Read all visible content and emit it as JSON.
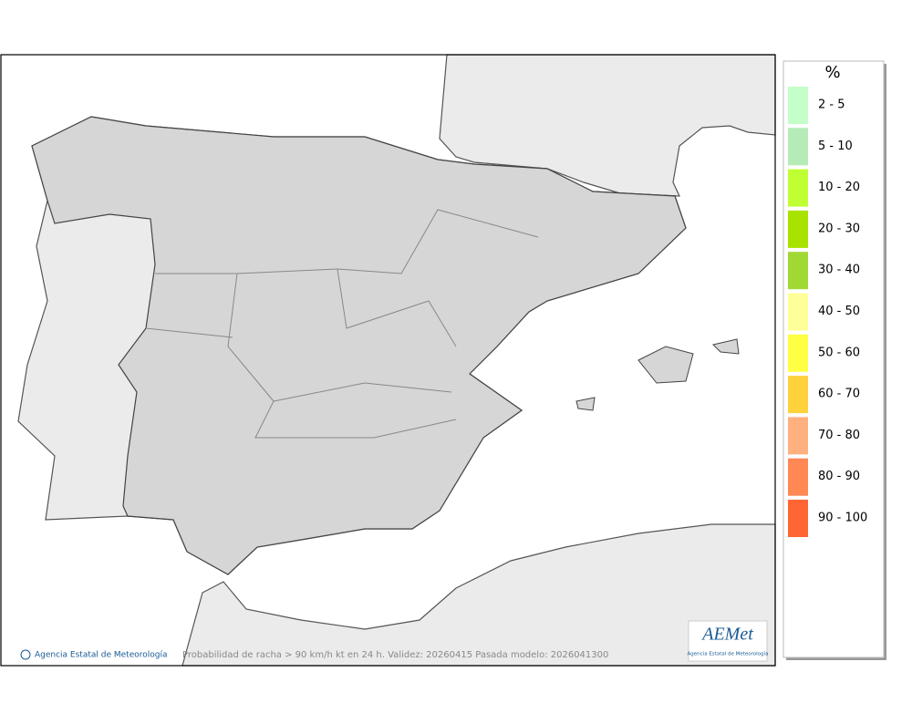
{
  "legend": {
    "title": "%",
    "items": [
      {
        "label": "2 - 5",
        "color": "#c4fec8"
      },
      {
        "label": "5 - 10",
        "color": "#b4ebb7"
      },
      {
        "label": "10 - 20",
        "color": "#bfff33"
      },
      {
        "label": "20 - 30",
        "color": "#a8e300"
      },
      {
        "label": "30 - 40",
        "color": "#a1d934"
      },
      {
        "label": "40 - 50",
        "color": "#ffff99"
      },
      {
        "label": "50 - 60",
        "color": "#ffff44"
      },
      {
        "label": "60 - 70",
        "color": "#ffd23c"
      },
      {
        "label": "70 - 80",
        "color": "#ffb07f"
      },
      {
        "label": "80 - 90",
        "color": "#ff8855"
      },
      {
        "label": "90 - 100",
        "color": "#ff6633"
      }
    ]
  },
  "footer": {
    "agency": "Agencia Estatal de Meteorología",
    "caption": "Probabilidad de racha > 90 km/h kt en 24 h. Validez: 20260415 Pasada modelo: 2026041300"
  },
  "logo": {
    "name": "AEMet",
    "subtitle": "Agencia Estatal de Meteorología"
  }
}
